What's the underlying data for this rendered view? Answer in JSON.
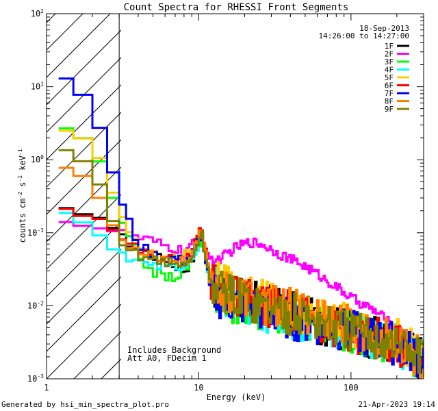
{
  "chart_data": {
    "type": "line",
    "title": "Count Spectra for RHESSI Front Segments",
    "xlabel": "Energy (keV)",
    "ylabel_parts": [
      "counts cm",
      "-2",
      " s",
      "-1",
      " keV",
      "-1"
    ],
    "xscale": "log",
    "yscale": "log",
    "xlim": [
      1,
      300
    ],
    "ylim": [
      0.001,
      100
    ],
    "x_ticks": [
      {
        "value": 1,
        "label": "1"
      },
      {
        "value": 10,
        "label": "10"
      },
      {
        "value": 100,
        "label": "100"
      }
    ],
    "y_ticks": [
      {
        "value": 0.001,
        "base": "10",
        "exp": "-3"
      },
      {
        "value": 0.01,
        "base": "10",
        "exp": "-2"
      },
      {
        "value": 0.1,
        "base": "10",
        "exp": "-1"
      },
      {
        "value": 1,
        "base": "10",
        "exp": "0"
      },
      {
        "value": 10,
        "base": "10",
        "exp": "1"
      },
      {
        "value": 100,
        "base": "10",
        "exp": "2"
      }
    ],
    "date_label": "18-Sep-2013",
    "time_range_label": "14:26:00 to 14:27:00",
    "hatched_region": {
      "x_start": 1,
      "x_end": 3
    },
    "annotation_lines": [
      "Includes Background",
      "Att A0, FDecim 1"
    ],
    "footer_left": "Generated by hsi_min_spectra_plot.pro",
    "footer_right": "21-Apr-2023 19:14",
    "series": [
      {
        "name": "1F",
        "color": "#000000",
        "anchors": [
          [
            1.2,
            0.25
          ],
          [
            1.5,
            0.19
          ],
          [
            2,
            0.17
          ],
          [
            2.5,
            0.15
          ],
          [
            3,
            0.09
          ],
          [
            4,
            0.06
          ],
          [
            5,
            0.05
          ],
          [
            6,
            0.04
          ],
          [
            7,
            0.036
          ],
          [
            8,
            0.03
          ],
          [
            9,
            0.04
          ],
          [
            10,
            0.08
          ],
          [
            10.5,
            0.1
          ],
          [
            11,
            0.06
          ],
          [
            12,
            0.02
          ],
          [
            15,
            0.015
          ],
          [
            20,
            0.012
          ],
          [
            30,
            0.01
          ],
          [
            50,
            0.007
          ],
          [
            80,
            0.005
          ],
          [
            120,
            0.004
          ],
          [
            200,
            0.003
          ],
          [
            280,
            0.002
          ]
        ]
      },
      {
        "name": "2F",
        "color": "#ff00ff",
        "anchors": [
          [
            1.2,
            0.15
          ],
          [
            1.5,
            0.13
          ],
          [
            2,
            0.12
          ],
          [
            2.5,
            0.11
          ],
          [
            3,
            0.1
          ],
          [
            4,
            0.085
          ],
          [
            5,
            0.075
          ],
          [
            6,
            0.065
          ],
          [
            7,
            0.06
          ],
          [
            8,
            0.055
          ],
          [
            9,
            0.065
          ],
          [
            10,
            0.09
          ],
          [
            10.5,
            0.1
          ],
          [
            11,
            0.07
          ],
          [
            12,
            0.04
          ],
          [
            14,
            0.045
          ],
          [
            18,
            0.065
          ],
          [
            22,
            0.075
          ],
          [
            26,
            0.07
          ],
          [
            35,
            0.05
          ],
          [
            50,
            0.035
          ],
          [
            70,
            0.022
          ],
          [
            100,
            0.013
          ],
          [
            150,
            0.008
          ],
          [
            220,
            0.004
          ],
          [
            300,
            0.002
          ]
        ]
      },
      {
        "name": "3F",
        "color": "#00ff00",
        "anchors": [
          [
            1.2,
            2.8
          ],
          [
            1.5,
            2.6
          ],
          [
            2,
            1.5
          ],
          [
            2.5,
            0.6
          ],
          [
            3,
            0.15
          ],
          [
            4,
            0.05
          ],
          [
            5,
            0.03
          ],
          [
            6,
            0.025
          ],
          [
            7,
            0.025
          ],
          [
            8,
            0.03
          ],
          [
            9,
            0.04
          ],
          [
            10,
            0.07
          ],
          [
            10.5,
            0.09
          ],
          [
            11,
            0.05
          ],
          [
            12,
            0.018
          ],
          [
            15,
            0.012
          ],
          [
            20,
            0.01
          ],
          [
            30,
            0.008
          ],
          [
            50,
            0.006
          ],
          [
            80,
            0.005
          ],
          [
            120,
            0.004
          ],
          [
            200,
            0.003
          ],
          [
            280,
            0.002
          ]
        ]
      },
      {
        "name": "4F",
        "color": "#00ffff",
        "anchors": [
          [
            1.2,
            0.22
          ],
          [
            1.5,
            0.16
          ],
          [
            2,
            0.12
          ],
          [
            2.5,
            0.07
          ],
          [
            3,
            0.05
          ],
          [
            4,
            0.045
          ],
          [
            5,
            0.04
          ],
          [
            6,
            0.035
          ],
          [
            7,
            0.035
          ],
          [
            8,
            0.03
          ],
          [
            9,
            0.04
          ],
          [
            10,
            0.07
          ],
          [
            10.5,
            0.085
          ],
          [
            11,
            0.05
          ],
          [
            12,
            0.02
          ],
          [
            15,
            0.012
          ],
          [
            20,
            0.01
          ],
          [
            30,
            0.008
          ],
          [
            50,
            0.006
          ],
          [
            80,
            0.005
          ],
          [
            120,
            0.004
          ],
          [
            200,
            0.003
          ],
          [
            280,
            0.002
          ]
        ]
      },
      {
        "name": "5F",
        "color": "#ffcc00",
        "anchors": [
          [
            1.2,
            2.6
          ],
          [
            1.5,
            2.4
          ],
          [
            2,
            1.6
          ],
          [
            2.5,
            0.7
          ],
          [
            3,
            0.18
          ],
          [
            4,
            0.07
          ],
          [
            5,
            0.05
          ],
          [
            6,
            0.045
          ],
          [
            7,
            0.045
          ],
          [
            8,
            0.05
          ],
          [
            9,
            0.06
          ],
          [
            10,
            0.09
          ],
          [
            10.5,
            0.1
          ],
          [
            11,
            0.06
          ],
          [
            12,
            0.025
          ],
          [
            15,
            0.018
          ],
          [
            20,
            0.014
          ],
          [
            30,
            0.011
          ],
          [
            50,
            0.008
          ],
          [
            80,
            0.006
          ],
          [
            120,
            0.0045
          ],
          [
            200,
            0.0035
          ],
          [
            280,
            0.0025
          ]
        ]
      },
      {
        "name": "6F",
        "color": "#ff0000",
        "anchors": [
          [
            1.2,
            0.25
          ],
          [
            1.5,
            0.18
          ],
          [
            2,
            0.16
          ],
          [
            2.5,
            0.15
          ],
          [
            3,
            0.08
          ],
          [
            4,
            0.06
          ],
          [
            5,
            0.05
          ],
          [
            6,
            0.045
          ],
          [
            7,
            0.042
          ],
          [
            8,
            0.04
          ],
          [
            9,
            0.05
          ],
          [
            10,
            0.1
          ],
          [
            10.5,
            0.12
          ],
          [
            11,
            0.07
          ],
          [
            12,
            0.02
          ],
          [
            15,
            0.015
          ],
          [
            20,
            0.012
          ],
          [
            30,
            0.01
          ],
          [
            50,
            0.007
          ],
          [
            80,
            0.005
          ],
          [
            120,
            0.004
          ],
          [
            200,
            0.003
          ],
          [
            280,
            0.002
          ]
        ]
      },
      {
        "name": "7F",
        "color": "#0000ff",
        "anchors": [
          [
            1.2,
            14
          ],
          [
            1.5,
            12
          ],
          [
            2,
            5
          ],
          [
            2.5,
            1.5
          ],
          [
            3,
            0.3
          ],
          [
            4,
            0.07
          ],
          [
            5,
            0.05
          ],
          [
            6,
            0.045
          ],
          [
            7,
            0.045
          ],
          [
            8,
            0.04
          ],
          [
            9,
            0.05
          ],
          [
            10,
            0.08
          ],
          [
            10.5,
            0.09
          ],
          [
            11,
            0.05
          ],
          [
            12,
            0.015
          ],
          [
            15,
            0.012
          ],
          [
            20,
            0.01
          ],
          [
            30,
            0.008
          ],
          [
            50,
            0.006
          ],
          [
            80,
            0.005
          ],
          [
            120,
            0.004
          ],
          [
            200,
            0.003
          ],
          [
            280,
            0.002
          ]
        ]
      },
      {
        "name": "8F",
        "color": "#ff7f00",
        "anchors": [
          [
            1.2,
            0.75
          ],
          [
            1.5,
            0.8
          ],
          [
            2,
            0.45
          ],
          [
            2.5,
            0.2
          ],
          [
            3,
            0.08
          ],
          [
            4,
            0.06
          ],
          [
            5,
            0.05
          ],
          [
            6,
            0.045
          ],
          [
            7,
            0.04
          ],
          [
            8,
            0.04
          ],
          [
            9,
            0.05
          ],
          [
            10,
            0.1
          ],
          [
            10.5,
            0.11
          ],
          [
            11,
            0.06
          ],
          [
            12,
            0.02
          ],
          [
            15,
            0.016
          ],
          [
            20,
            0.013
          ],
          [
            30,
            0.01
          ],
          [
            50,
            0.008
          ],
          [
            80,
            0.006
          ],
          [
            120,
            0.0045
          ],
          [
            200,
            0.003
          ],
          [
            280,
            0.002
          ]
        ]
      },
      {
        "name": "9F",
        "color": "#808000",
        "anchors": [
          [
            1.2,
            1.4
          ],
          [
            1.5,
            1.3
          ],
          [
            2,
            0.7
          ],
          [
            2.5,
            0.3
          ],
          [
            3,
            0.07
          ],
          [
            4,
            0.05
          ],
          [
            5,
            0.045
          ],
          [
            6,
            0.04
          ],
          [
            7,
            0.038
          ],
          [
            8,
            0.035
          ],
          [
            9,
            0.045
          ],
          [
            10,
            0.08
          ],
          [
            10.5,
            0.09
          ],
          [
            11,
            0.05
          ],
          [
            12,
            0.02
          ],
          [
            15,
            0.015
          ],
          [
            20,
            0.012
          ],
          [
            30,
            0.009
          ],
          [
            50,
            0.007
          ],
          [
            80,
            0.005
          ],
          [
            120,
            0.004
          ],
          [
            200,
            0.003
          ],
          [
            280,
            0.002
          ]
        ]
      }
    ]
  }
}
